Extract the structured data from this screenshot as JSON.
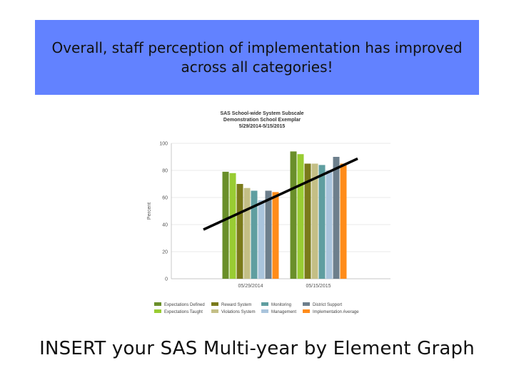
{
  "slide": {
    "banner_text": "Overall, staff perception of implementation has improved across all categories!",
    "caption": "INSERT your SAS Multi-year by Element Graph",
    "banner_color": "#6282ff"
  },
  "chart_data": {
    "type": "bar",
    "title_lines": [
      "SAS School-wide System Subscale",
      "Demonstration School Exemplar",
      "5/29/2014-5/15/2015"
    ],
    "ylabel": "Percent",
    "ylim": [
      0,
      100
    ],
    "yticks": [
      0,
      20,
      40,
      60,
      80,
      100
    ],
    "categories": [
      "05/29/2014",
      "05/15/2015"
    ],
    "series": [
      {
        "name": "Expectations Defined",
        "color": "#6a8f2a",
        "values": [
          79,
          94
        ]
      },
      {
        "name": "Expectations Taught",
        "color": "#99cc33",
        "values": [
          78,
          92
        ]
      },
      {
        "name": "Reward System",
        "color": "#7a7a1a",
        "values": [
          70,
          85
        ]
      },
      {
        "name": "Violations System",
        "color": "#c4bf86",
        "values": [
          67,
          85
        ]
      },
      {
        "name": "Monitoring",
        "color": "#5f9ea0",
        "values": [
          65,
          84
        ]
      },
      {
        "name": "Management",
        "color": "#a9c4dc",
        "values": [
          58,
          80
        ]
      },
      {
        "name": "District Support",
        "color": "#6d7f8c",
        "values": [
          65,
          90
        ]
      },
      {
        "name": "Implementation Average",
        "color": "#ff8c1a",
        "values": [
          64,
          85
        ]
      }
    ],
    "legend_rows": [
      [
        "Expectations Defined",
        "Reward System",
        "Monitoring",
        "District Support"
      ],
      [
        "Expectations Taught",
        "Violations System",
        "Management",
        "Implementation Average"
      ]
    ],
    "trend_line": {
      "from": [
        0,
        40
      ],
      "to": [
        1,
        85
      ]
    },
    "grid": true,
    "legend_position": "bottom"
  }
}
